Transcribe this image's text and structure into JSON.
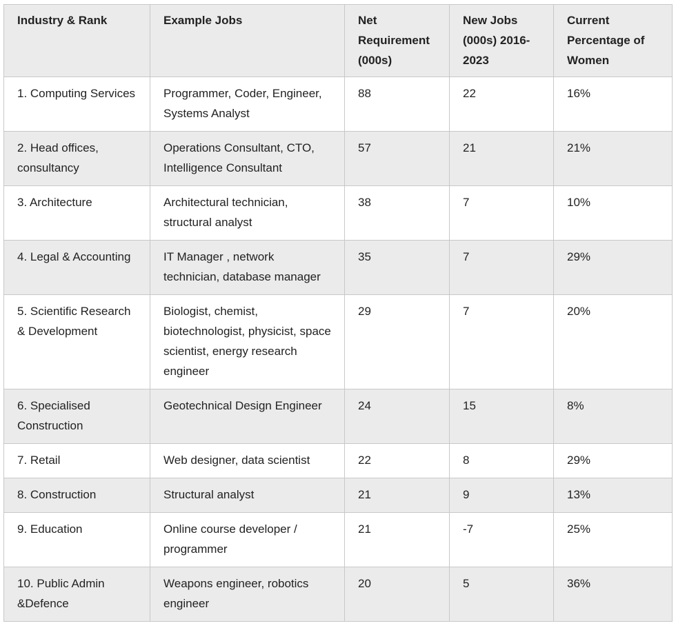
{
  "table": {
    "headers": [
      "Industry & Rank",
      "Example Jobs",
      "Net Requirement (000s)",
      "New Jobs (000s) 2016-2023",
      "Current Percentage of Women"
    ],
    "rows": [
      [
        "1. Computing Services",
        "Programmer, Coder, Engineer, Systems Analyst",
        "88",
        "22",
        "16%"
      ],
      [
        "2. Head offices, consultancy",
        "Operations Consultant, CTO, Intelligence Consultant",
        "57",
        "21",
        "21%"
      ],
      [
        "3. Architecture",
        "Architectural technician, structural analyst",
        "38",
        "7",
        "10%"
      ],
      [
        "4. Legal & Accounting",
        "IT Manager , network technician, database manager",
        "35",
        "7",
        "29%"
      ],
      [
        "5. Scientific Research & Development",
        "Biologist, chemist, biotechnologist, physicist, space scientist, energy research engineer",
        "29",
        "7",
        "20%"
      ],
      [
        "6. Specialised Construction",
        "Geotechnical Design Engineer",
        "24",
        "15",
        "8%"
      ],
      [
        "7. Retail",
        "Web designer, data scientist",
        "22",
        "8",
        "29%"
      ],
      [
        "8. Construction",
        "Structural analyst",
        "21",
        "9",
        "13%"
      ],
      [
        "9. Education",
        "Online course developer / programmer",
        "21",
        "-7",
        "25%"
      ],
      [
        "10. Public Admin &Defence",
        "Weapons engineer, robotics engineer",
        "20",
        "5",
        "36%"
      ]
    ]
  }
}
